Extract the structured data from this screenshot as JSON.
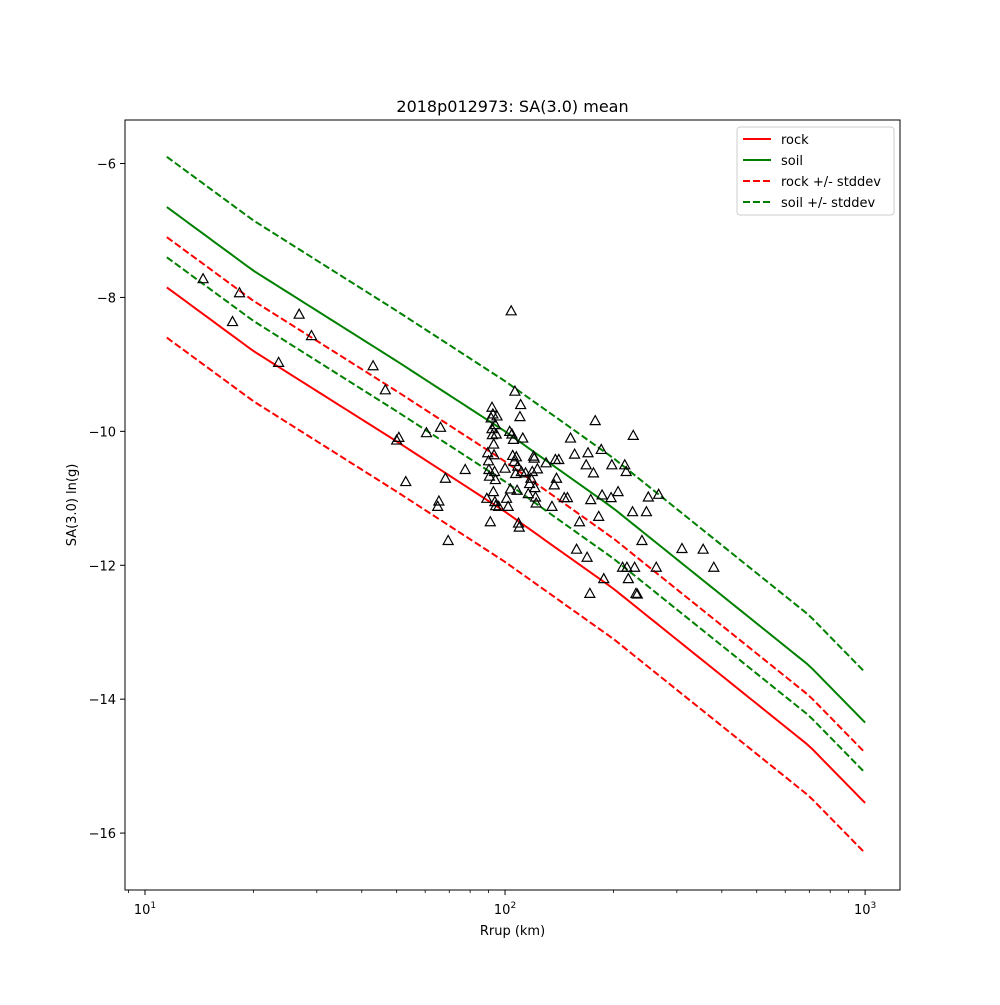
{
  "chart_data": {
    "type": "line",
    "title": "2018p012973: SA(3.0) mean",
    "xlabel": "Rrup (km)",
    "ylabel": "SA(3.0) ln(g)",
    "x_scale": "log",
    "xlim": [
      8.8,
      1250
    ],
    "ylim": [
      -16.85,
      -5.35
    ],
    "grid": false,
    "legend_position": "top-right",
    "x_ticks": [
      {
        "value": 10,
        "base": "10",
        "exp": "1"
      },
      {
        "value": 100,
        "base": "10",
        "exp": "2"
      },
      {
        "value": 1000,
        "base": "10",
        "exp": "3"
      }
    ],
    "y_ticks": [
      {
        "value": -16,
        "label": "−16"
      },
      {
        "value": -14,
        "label": "−14"
      },
      {
        "value": -12,
        "label": "−12"
      },
      {
        "value": -10,
        "label": "−10"
      },
      {
        "value": -8,
        "label": "−8"
      },
      {
        "value": -6,
        "label": "−6"
      }
    ],
    "x": [
      11.5,
      20,
      50,
      100,
      200,
      400,
      700,
      1000
    ],
    "series": [
      {
        "name": "rock",
        "color": "#ff0000",
        "dash": false,
        "values": [
          -7.85,
          -8.8,
          -10.15,
          -11.2,
          -12.35,
          -13.65,
          -14.7,
          -15.55
        ]
      },
      {
        "name": "soil",
        "color": "#008000",
        "dash": false,
        "values": [
          -6.65,
          -7.6,
          -8.95,
          -10.0,
          -11.15,
          -12.45,
          -13.5,
          -14.35
        ]
      },
      {
        "name": "rock +/- stddev",
        "color": "#ff0000",
        "dash": true,
        "values": [
          -7.1,
          -8.05,
          -9.4,
          -10.45,
          -11.6,
          -12.9,
          -13.95,
          -14.8
        ]
      },
      {
        "name": "",
        "color": "#ff0000",
        "dash": true,
        "values": [
          -8.6,
          -9.55,
          -10.9,
          -11.95,
          -13.1,
          -14.4,
          -15.45,
          -16.3
        ]
      },
      {
        "name": "soil +/- stddev",
        "color": "#008000",
        "dash": true,
        "values": [
          -5.9,
          -6.85,
          -8.2,
          -9.25,
          -10.4,
          -11.7,
          -12.75,
          -13.6
        ]
      },
      {
        "name": "",
        "color": "#008000",
        "dash": true,
        "values": [
          -7.4,
          -8.35,
          -9.7,
          -10.75,
          -11.9,
          -13.2,
          -14.25,
          -15.1
        ]
      }
    ],
    "legend": [
      {
        "label": "rock",
        "color": "#ff0000",
        "dash": false
      },
      {
        "label": "soil",
        "color": "#008000",
        "dash": false
      },
      {
        "label": "rock +/- stddev",
        "color": "#ff0000",
        "dash": true
      },
      {
        "label": "soil +/- stddev",
        "color": "#008000",
        "dash": true
      }
    ],
    "observations": {
      "marker": "triangle",
      "points": [
        [
          14.5,
          -7.72
        ],
        [
          17.5,
          -8.36
        ],
        [
          18.3,
          -7.93
        ],
        [
          23.5,
          -8.97
        ],
        [
          26.8,
          -8.25
        ],
        [
          29,
          -8.57
        ],
        [
          43,
          -9.02
        ],
        [
          46.5,
          -9.38
        ],
        [
          50,
          -10.13
        ],
        [
          50.7,
          -10.09
        ],
        [
          53,
          -10.75
        ],
        [
          60.5,
          -10.02
        ],
        [
          65,
          -11.12
        ],
        [
          65.5,
          -11.04
        ],
        [
          66.2,
          -9.94
        ],
        [
          68.3,
          -10.7
        ],
        [
          69.5,
          -11.63
        ],
        [
          77.5,
          -10.57
        ],
        [
          89,
          -11.0
        ],
        [
          89.5,
          -10.32
        ],
        [
          90,
          -10.44
        ],
        [
          90.2,
          -10.57
        ],
        [
          90.5,
          -10.67
        ],
        [
          91,
          -11.35
        ],
        [
          91.5,
          -9.8
        ],
        [
          92,
          -9.64
        ],
        [
          92,
          -9.96
        ],
        [
          92.2,
          -10.05
        ],
        [
          92.5,
          -9.74
        ],
        [
          92.8,
          -10.9
        ],
        [
          93,
          -10.19
        ],
        [
          93.2,
          -10.35
        ],
        [
          93.5,
          -10.6
        ],
        [
          93.7,
          -11.05
        ],
        [
          94,
          -9.9
        ],
        [
          94,
          -10.72
        ],
        [
          94.2,
          -11.11
        ],
        [
          94.5,
          -10.04
        ],
        [
          95,
          -9.77
        ],
        [
          96,
          -11.12
        ],
        [
          100,
          -10.55
        ],
        [
          101,
          -11.0
        ],
        [
          102,
          -11.12
        ],
        [
          103,
          -10.0
        ],
        [
          103.5,
          -10.86
        ],
        [
          104,
          -8.2
        ],
        [
          104.5,
          -10.04
        ],
        [
          105,
          -10.36
        ],
        [
          105.5,
          -10.12
        ],
        [
          106,
          -10.45
        ],
        [
          106.5,
          -9.4
        ],
        [
          107,
          -10.63
        ],
        [
          107.5,
          -10.38
        ],
        [
          108,
          -10.88
        ],
        [
          108.5,
          -10.52
        ],
        [
          109,
          -11.37
        ],
        [
          109.5,
          -11.43
        ],
        [
          110,
          -9.78
        ],
        [
          110.5,
          -9.6
        ],
        [
          111,
          -10.6
        ],
        [
          112,
          -10.1
        ],
        [
          114,
          -10.62
        ],
        [
          116,
          -10.93
        ],
        [
          117,
          -10.78
        ],
        [
          118,
          -10.7
        ],
        [
          119,
          -10.6
        ],
        [
          120,
          -10.37
        ],
        [
          120.5,
          -10.4
        ],
        [
          121,
          -10.84
        ],
        [
          121.5,
          -10.98
        ],
        [
          122,
          -11.07
        ],
        [
          123,
          -10.56
        ],
        [
          130,
          -10.47
        ],
        [
          135,
          -11.12
        ],
        [
          137,
          -10.8
        ],
        [
          138,
          -10.42
        ],
        [
          139,
          -10.7
        ],
        [
          141,
          -10.42
        ],
        [
          146,
          -10.99
        ],
        [
          149,
          -10.99
        ],
        [
          152,
          -10.1
        ],
        [
          156,
          -10.34
        ],
        [
          158,
          -11.76
        ],
        [
          161,
          -11.35
        ],
        [
          168,
          -10.5
        ],
        [
          169,
          -11.88
        ],
        [
          170,
          -10.32
        ],
        [
          172,
          -12.42
        ],
        [
          173,
          -11.02
        ],
        [
          176,
          -10.62
        ],
        [
          178,
          -9.84
        ],
        [
          182,
          -11.27
        ],
        [
          185,
          -10.27
        ],
        [
          186,
          -10.95
        ],
        [
          188,
          -12.2
        ],
        [
          197,
          -10.99
        ],
        [
          198,
          -10.5
        ],
        [
          206,
          -10.9
        ],
        [
          212,
          -12.03
        ],
        [
          215,
          -10.5
        ],
        [
          217,
          -10.6
        ],
        [
          218,
          -12.03
        ],
        [
          220,
          -12.2
        ],
        [
          226,
          -11.2
        ],
        [
          227,
          -10.06
        ],
        [
          229,
          -12.03
        ],
        [
          231,
          -12.42
        ],
        [
          233,
          -12.43
        ],
        [
          240,
          -11.63
        ],
        [
          247,
          -11.2
        ],
        [
          250,
          -10.98
        ],
        [
          263,
          -12.03
        ],
        [
          267,
          -10.94
        ],
        [
          310,
          -11.75
        ],
        [
          355,
          -11.76
        ],
        [
          380,
          -12.03
        ]
      ]
    }
  }
}
